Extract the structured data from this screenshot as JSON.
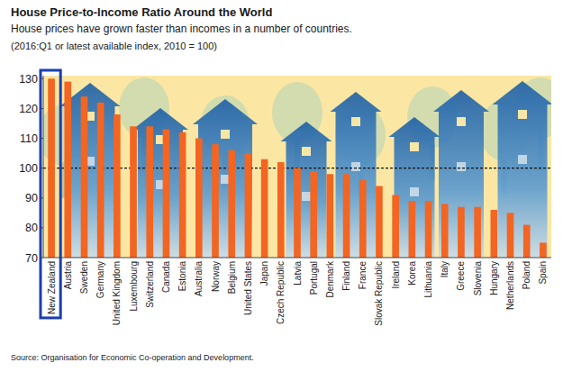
{
  "chart_data": {
    "type": "bar",
    "title": "House Price-to-Income Ratio Around the World",
    "subtitle": "House prices have grown faster than incomes in a number of countries.",
    "annotations": [
      "(2016:Q1 or latest available index, 2010 = 100)"
    ],
    "source": "Source: Organisation for Economic Co-operation and Development.",
    "categories": [
      "New Zealand",
      "Austria",
      "Sweden",
      "Germany",
      "United Kingdom",
      "Luxembourg",
      "Switzerland",
      "Canada",
      "Estonia",
      "Australia",
      "Norway",
      "Belgium",
      "United States",
      "Japan",
      "Czech Republic",
      "Latvia",
      "Portugal",
      "Denmark",
      "Finland",
      "France",
      "Slovak Republic",
      "Ireland",
      "Korea",
      "Lithuania",
      "Italy",
      "Greece",
      "Slovenia",
      "Hungary",
      "Netherlands",
      "Poland",
      "Spain"
    ],
    "values": [
      130,
      129,
      124,
      122,
      118,
      114,
      114,
      113,
      112,
      110,
      108,
      106,
      105,
      103,
      102,
      100,
      99,
      98,
      98,
      96,
      94,
      91,
      89,
      89,
      88,
      87,
      87,
      86,
      85,
      81,
      75
    ],
    "color": "#f26522",
    "baseline": 100,
    "ylim": [
      70,
      131
    ],
    "yticks": [
      70,
      80,
      90,
      100,
      110,
      120,
      130
    ],
    "grid": false
  }
}
